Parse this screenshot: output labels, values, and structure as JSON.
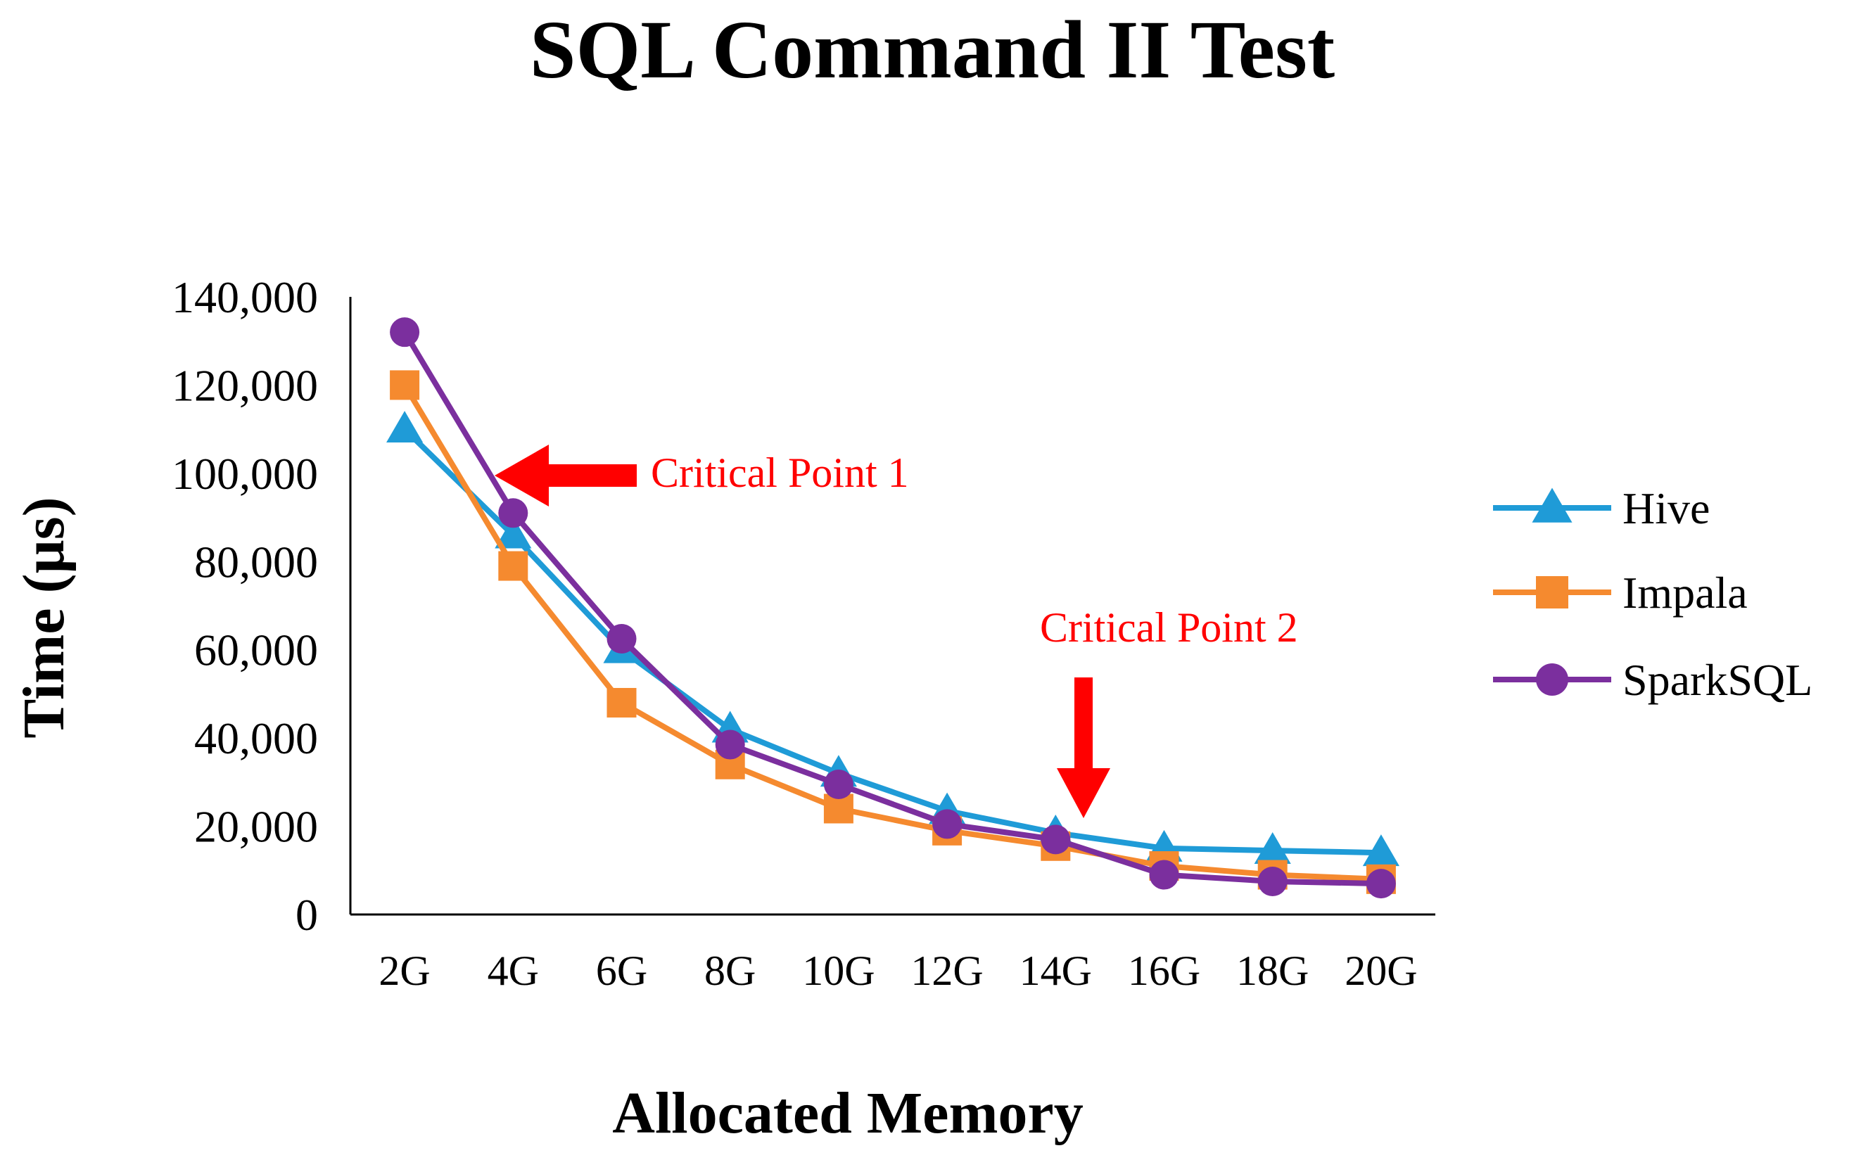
{
  "chart_data": {
    "type": "line",
    "title": "SQL Command  II Test",
    "xlabel": "Allocated Memory",
    "ylabel": "Time (µs)",
    "categories": [
      "2G",
      "4G",
      "6G",
      "8G",
      "10G",
      "12G",
      "14G",
      "16G",
      "18G",
      "20G"
    ],
    "ylim": [
      0,
      140000
    ],
    "yticks": [
      0,
      20000,
      40000,
      60000,
      80000,
      100000,
      120000,
      140000
    ],
    "ytick_labels": [
      "0",
      "20,000",
      "40,000",
      "60,000",
      "80,000",
      "100,000",
      "120,000",
      "140,000"
    ],
    "grid": false,
    "legend_position": "right",
    "series": [
      {
        "name": "Hive",
        "color": "#1f9bd7",
        "marker": "triangle",
        "values": [
          110000,
          86000,
          60000,
          42000,
          32000,
          23500,
          18500,
          15000,
          14500,
          14000
        ]
      },
      {
        "name": "Impala",
        "color": "#f58a2f",
        "marker": "square",
        "values": [
          120000,
          79000,
          48000,
          34000,
          24000,
          19000,
          15500,
          11000,
          9000,
          8000
        ]
      },
      {
        "name": "SparkSQL",
        "color": "#7b2f9e",
        "marker": "circle",
        "values": [
          132000,
          91000,
          62500,
          38500,
          29500,
          20500,
          17000,
          9000,
          7500,
          7000
        ]
      }
    ],
    "annotations": [
      {
        "text": "Critical  Point 1",
        "color": "#ff0000",
        "arrow": "left",
        "points_to": {
          "x": "4G",
          "y": 98000
        }
      },
      {
        "text": "Critical  Point 2",
        "color": "#ff0000",
        "arrow": "down",
        "points_to": {
          "x": "14G",
          "y": 20000
        }
      }
    ]
  }
}
